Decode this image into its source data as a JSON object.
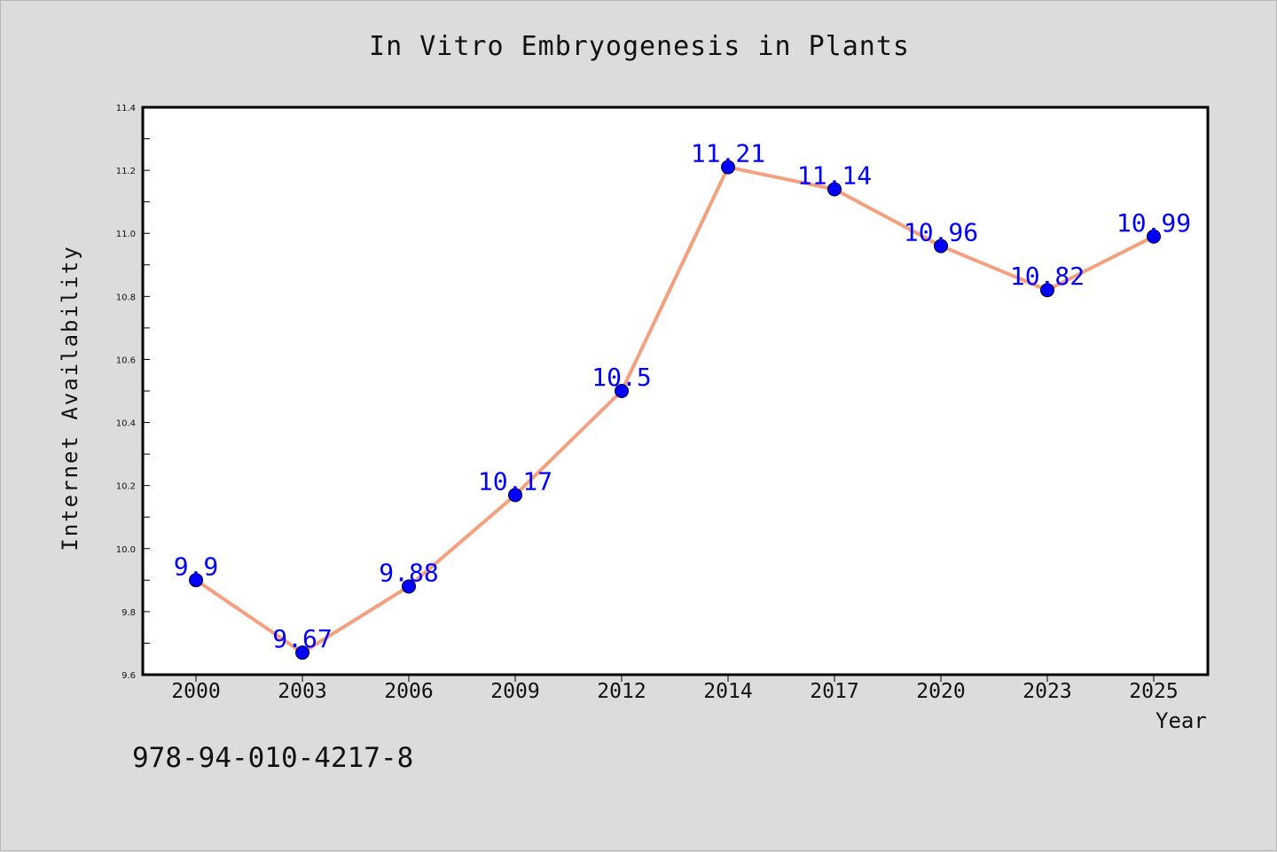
{
  "chart_data": {
    "type": "line",
    "title": "In Vitro Embryogenesis in Plants",
    "xlabel": "Year",
    "ylabel": "Internet Availability",
    "categories": [
      "2000",
      "2003",
      "2006",
      "2009",
      "2012",
      "2014",
      "2017",
      "2020",
      "2023",
      "2025"
    ],
    "series": [
      {
        "values": [
          9.9,
          9.67,
          9.88,
          10.17,
          10.5,
          11.21,
          11.14,
          10.96,
          10.82,
          10.99
        ],
        "labels": [
          "9.9",
          "9.67",
          "9.88",
          "10.17",
          "10.5",
          "11.21",
          "11.14",
          "10.96",
          "10.82",
          "10.99"
        ],
        "line_color": "#f4a07e",
        "marker_color": "#0000ff"
      }
    ],
    "ylim": [
      9.6,
      11.4
    ],
    "yticks": [
      "9.6",
      "9.8",
      "10.0",
      "10.2",
      "10.4",
      "10.6",
      "10.8",
      "11.0",
      "11.2",
      "11.4"
    ],
    "grid": false
  },
  "footer": {
    "code": "978-94-010-4217-8"
  },
  "colors": {
    "background": "#dcdcdc",
    "plot_area": "#ffffff",
    "label_color": "#0000ff"
  }
}
